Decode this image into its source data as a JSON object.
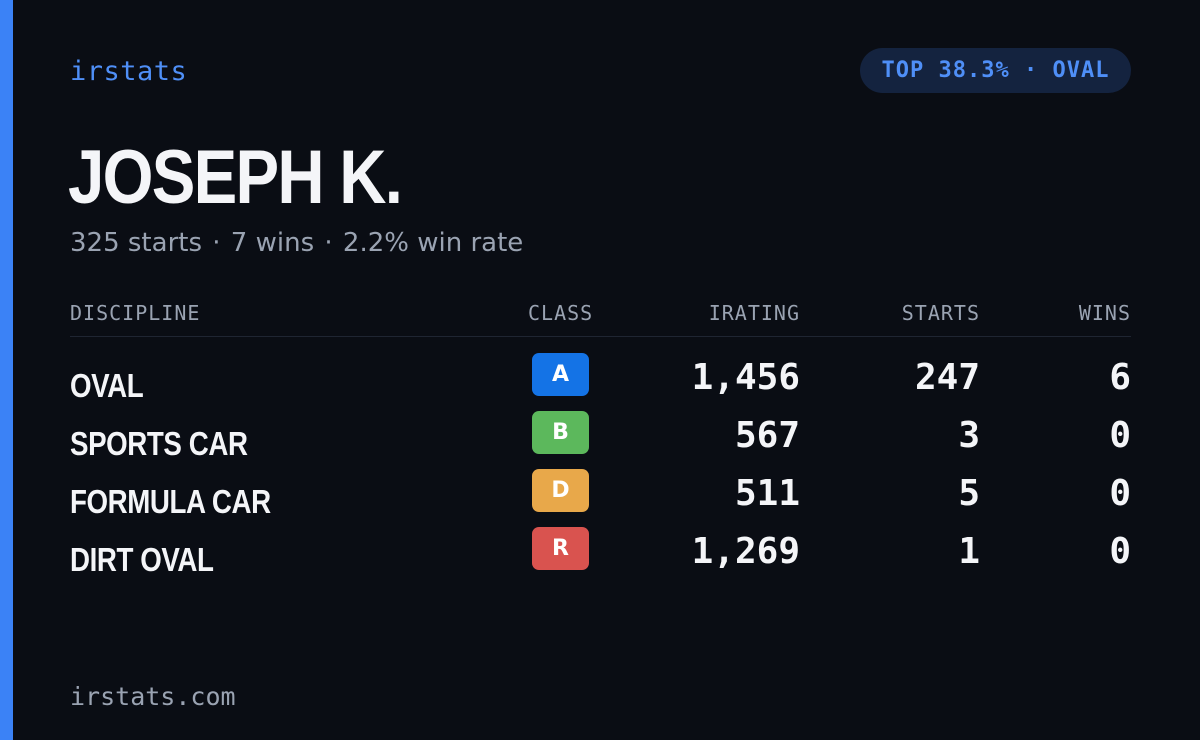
{
  "brand": "irstats",
  "rank_pill": "TOP 38.3% · OVAL",
  "driver": {
    "name": "JOSEPH K.",
    "starts": "325 starts",
    "wins": "7 wins",
    "win_rate": "2.2% win rate",
    "separator": "·"
  },
  "table": {
    "headers": {
      "discipline": "DISCIPLINE",
      "class": "CLASS",
      "irating": "IRATING",
      "starts": "STARTS",
      "wins": "WINS"
    },
    "rows": [
      {
        "discipline": "OVAL",
        "class": "A",
        "class_color": "#1473e6",
        "irating": "1,456",
        "starts": "247",
        "wins": "6"
      },
      {
        "discipline": "SPORTS CAR",
        "class": "B",
        "class_color": "#5cb85c",
        "irating": "567",
        "starts": "3",
        "wins": "0"
      },
      {
        "discipline": "FORMULA CAR",
        "class": "D",
        "class_color": "#e8a84a",
        "irating": "511",
        "starts": "5",
        "wins": "0"
      },
      {
        "discipline": "DIRT OVAL",
        "class": "R",
        "class_color": "#d9534f",
        "irating": "1,269",
        "starts": "1",
        "wins": "0"
      }
    ]
  },
  "footer_site": "irstats.com",
  "colors": {
    "accent": "#3b82f6",
    "background": "#0a0d14",
    "pill_bg": "#14233f"
  }
}
